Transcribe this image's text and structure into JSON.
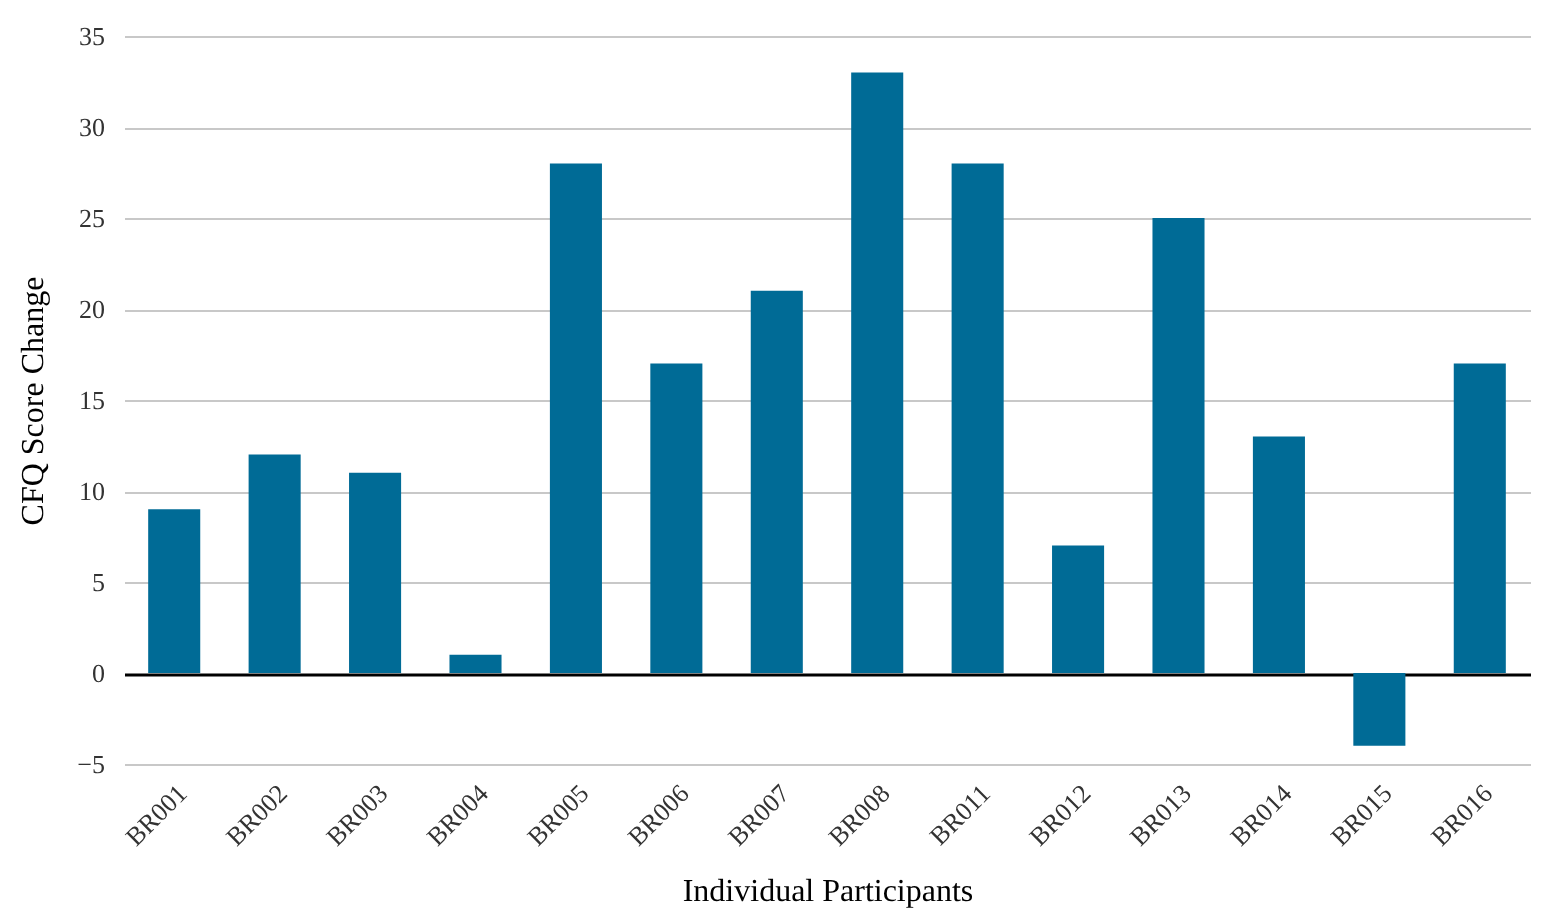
{
  "chart_data": {
    "type": "bar",
    "xlabel": "Individual  Participants",
    "ylabel": "CFQ Score Change",
    "categories": [
      "BR001",
      "BR002",
      "BR003",
      "BR004",
      "BR005",
      "BR006",
      "BR007",
      "BR008",
      "BR011",
      "BR012",
      "BR013",
      "BR014",
      "BR015",
      "BR016"
    ],
    "values": [
      9,
      12,
      11,
      1,
      28,
      17,
      21,
      33,
      28,
      7,
      25,
      13,
      -4,
      17
    ],
    "color": "#006b96",
    "ylim": [
      -5,
      35
    ],
    "yticks": [
      -5,
      0,
      5,
      10,
      15,
      20,
      25,
      30,
      35
    ],
    "grid": "y"
  }
}
